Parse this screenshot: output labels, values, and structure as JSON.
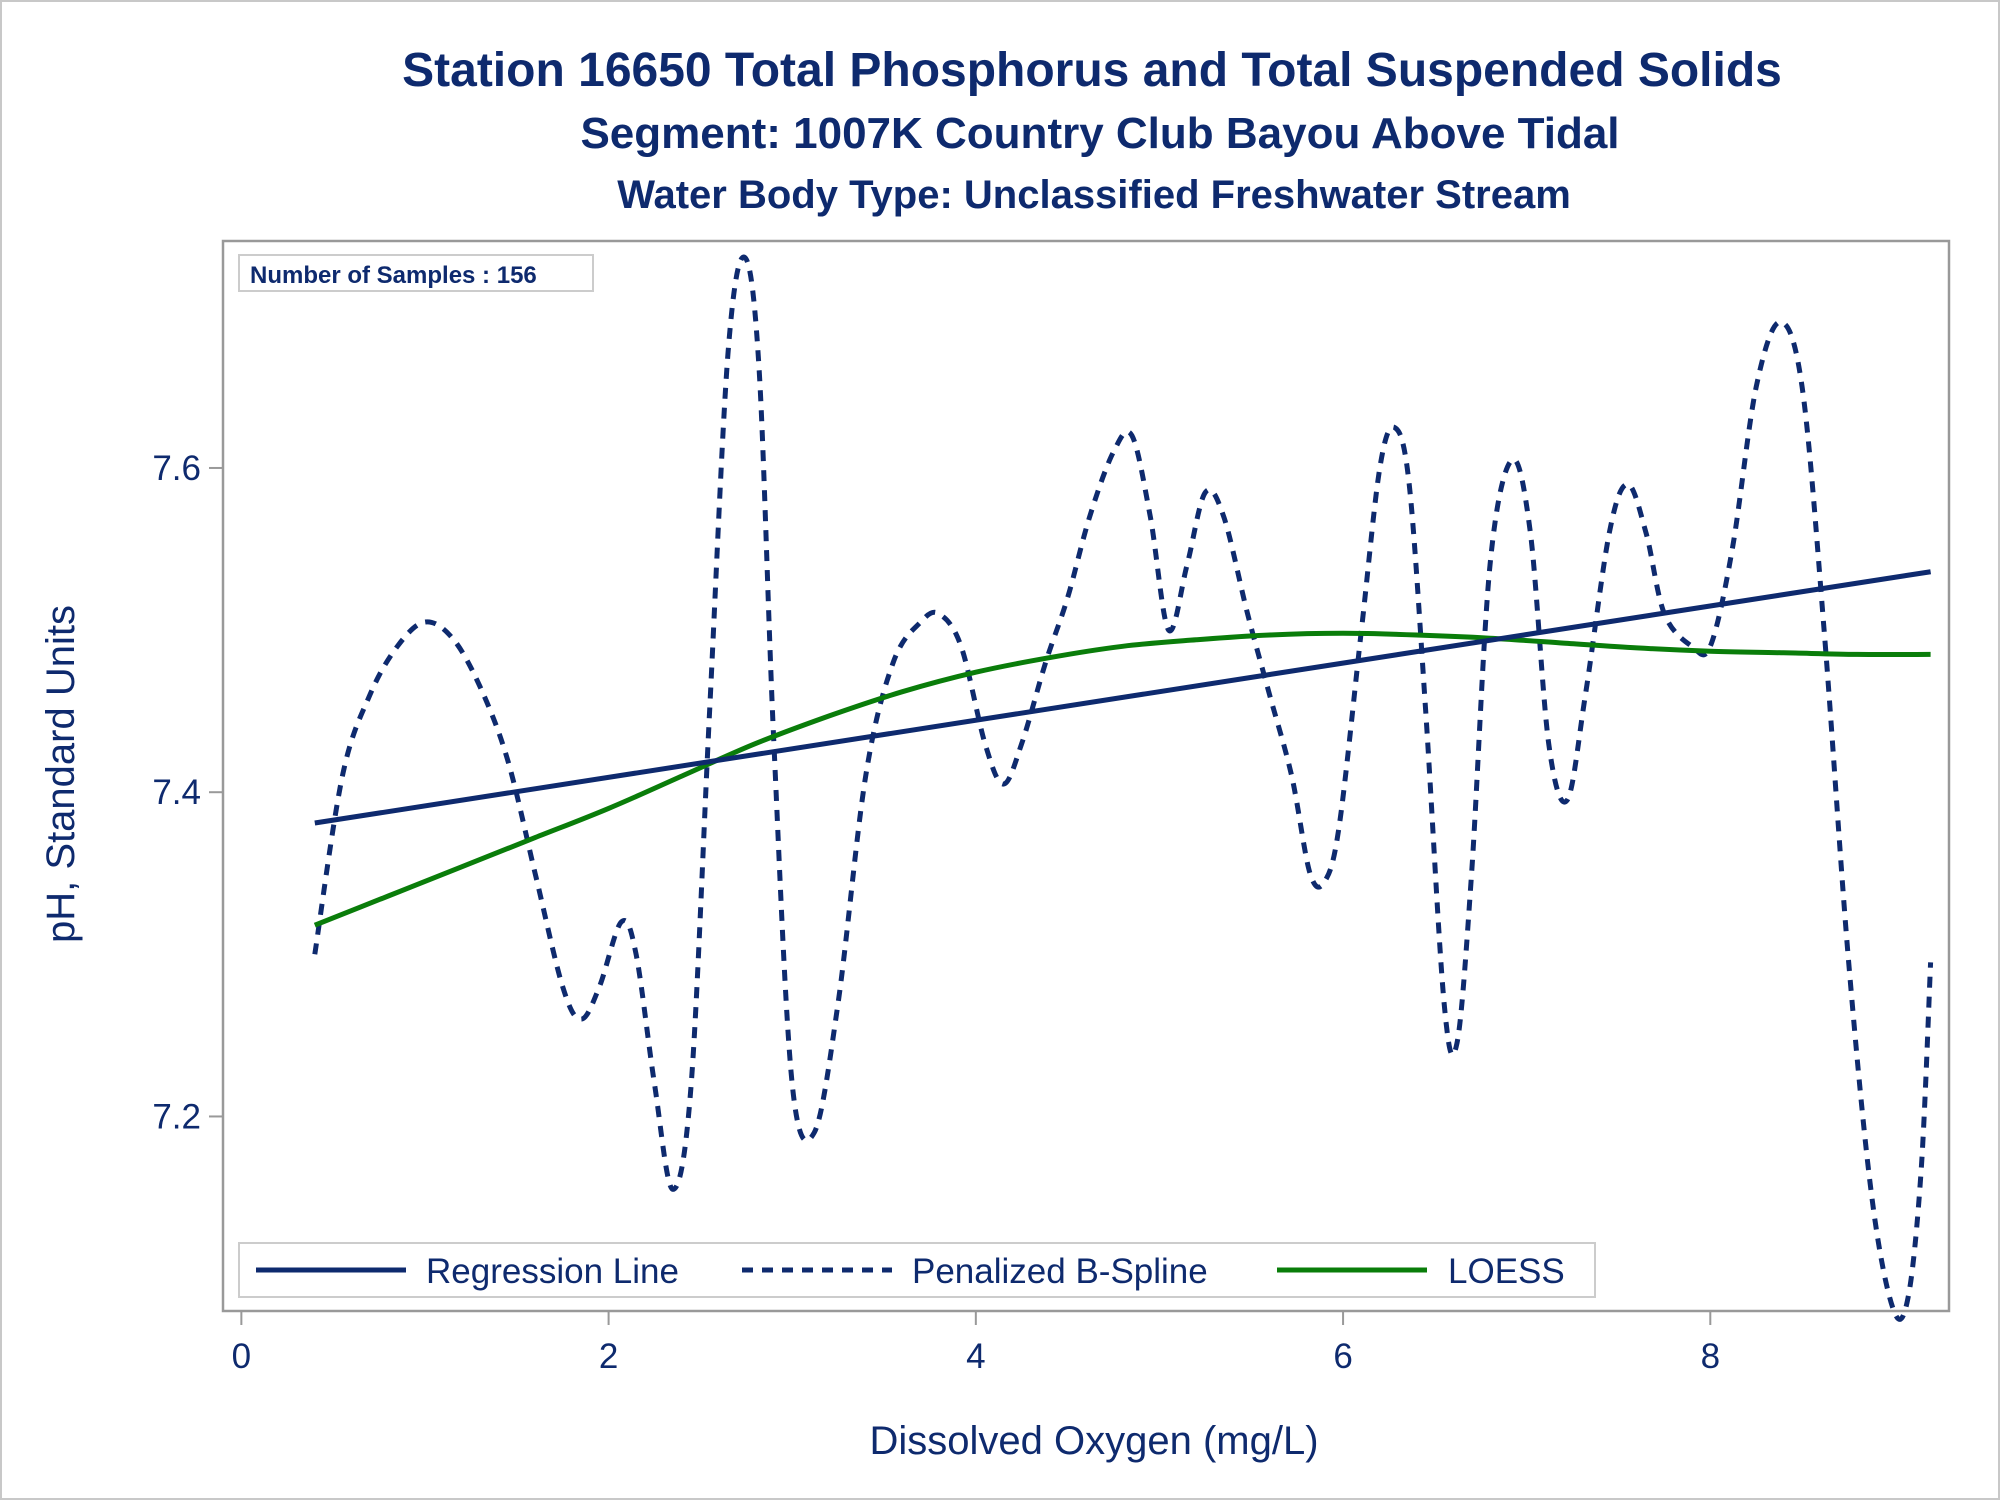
{
  "chart_data": {
    "type": "line",
    "title": "Station 16650  Total Phosphorus and Total Suspended Solids",
    "subtitle": "Segment: 1007K  Country Club Bayou Above Tidal",
    "subtitle2": "Water Body Type: Unclassified Freshwater Stream",
    "xlabel": "Dissolved Oxygen (mg/L)",
    "ylabel": "pH, Standard Units",
    "xlim": [
      -0.1,
      9.3
    ],
    "ylim": [
      7.08,
      7.74
    ],
    "x_ticks": [
      0,
      2,
      4,
      6,
      8
    ],
    "y_ticks": [
      7.2,
      7.4,
      7.6
    ],
    "annotation": "Number of Samples : 156",
    "legend_position": "bottom-left inside",
    "grid": false,
    "colors": {
      "regression": "#0e2a6e",
      "spline": "#0e2a6e",
      "loess": "#0a7d0a",
      "text": "#0e2a6e",
      "frame": "#999999"
    },
    "series": [
      {
        "name": "Regression Line",
        "style": "solid",
        "x": [
          0.4,
          9.2
        ],
        "y": [
          7.381,
          7.536
        ]
      },
      {
        "name": "Penalized B-Spline",
        "style": "dashed",
        "x": [
          0.4,
          0.55,
          0.7,
          0.85,
          1.0,
          1.15,
          1.3,
          1.45,
          1.6,
          1.75,
          1.85,
          1.95,
          2.07,
          2.15,
          2.25,
          2.35,
          2.45,
          2.55,
          2.65,
          2.74,
          2.82,
          2.9,
          3.0,
          3.12,
          3.25,
          3.4,
          3.55,
          3.7,
          3.8,
          3.92,
          4.05,
          4.15,
          4.25,
          4.38,
          4.5,
          4.62,
          4.75,
          4.85,
          4.95,
          5.05,
          5.15,
          5.25,
          5.35,
          5.48,
          5.6,
          5.72,
          5.82,
          5.9,
          5.98,
          6.1,
          6.2,
          6.28,
          6.36,
          6.45,
          6.55,
          6.62,
          6.7,
          6.8,
          6.92,
          7.02,
          7.12,
          7.22,
          7.32,
          7.45,
          7.55,
          7.65,
          7.75,
          7.9,
          8.0,
          8.12,
          8.25,
          8.38,
          8.5,
          8.62,
          8.75,
          8.88,
          9.0,
          9.08,
          9.15,
          9.2
        ],
        "y": [
          7.3,
          7.41,
          7.46,
          7.49,
          7.505,
          7.495,
          7.465,
          7.42,
          7.35,
          7.28,
          7.26,
          7.28,
          7.32,
          7.3,
          7.22,
          7.155,
          7.22,
          7.45,
          7.67,
          7.73,
          7.66,
          7.43,
          7.22,
          7.19,
          7.27,
          7.41,
          7.48,
          7.505,
          7.51,
          7.49,
          7.43,
          7.405,
          7.43,
          7.48,
          7.52,
          7.57,
          7.61,
          7.62,
          7.57,
          7.5,
          7.54,
          7.585,
          7.57,
          7.51,
          7.46,
          7.41,
          7.35,
          7.345,
          7.38,
          7.5,
          7.6,
          7.625,
          7.59,
          7.45,
          7.27,
          7.245,
          7.35,
          7.54,
          7.605,
          7.56,
          7.43,
          7.395,
          7.46,
          7.56,
          7.59,
          7.56,
          7.51,
          7.49,
          7.49,
          7.55,
          7.65,
          7.69,
          7.65,
          7.5,
          7.3,
          7.15,
          7.08,
          7.09,
          7.17,
          7.295
        ]
      },
      {
        "name": "LOESS",
        "style": "solid",
        "x": [
          0.4,
          0.8,
          1.2,
          1.6,
          2.0,
          2.4,
          2.8,
          3.2,
          3.6,
          4.0,
          4.4,
          4.8,
          5.2,
          5.6,
          6.0,
          6.4,
          6.8,
          7.2,
          7.6,
          8.0,
          8.4,
          8.8,
          9.2
        ],
        "y": [
          7.318,
          7.336,
          7.354,
          7.372,
          7.39,
          7.41,
          7.43,
          7.447,
          7.462,
          7.474,
          7.483,
          7.49,
          7.494,
          7.497,
          7.498,
          7.497,
          7.495,
          7.492,
          7.489,
          7.487,
          7.486,
          7.485,
          7.485
        ]
      }
    ]
  }
}
